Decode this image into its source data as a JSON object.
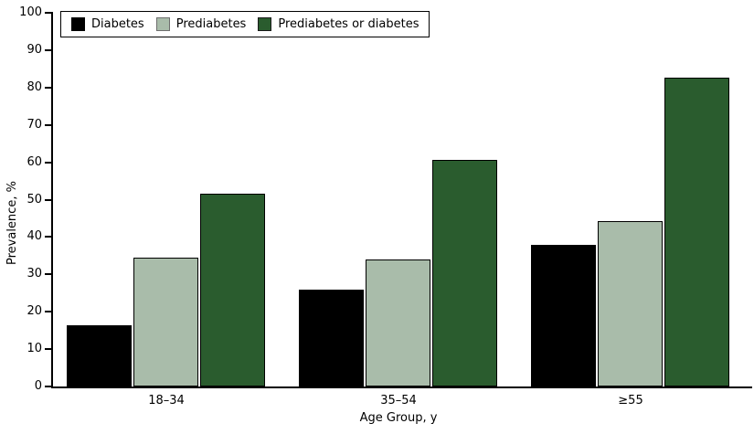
{
  "figure": {
    "background": "#ffffff",
    "axis_color": "#000000"
  },
  "chart_data": {
    "type": "bar",
    "title": "",
    "xlabel": "Age Group, y",
    "ylabel": "Prevalence, %",
    "categories": [
      "18–34",
      "35–54",
      "≥55"
    ],
    "series": [
      {
        "name": "Diabetes",
        "color": "#000000",
        "swatch_border": "#000000",
        "values": [
          16.5,
          26.0,
          38.0
        ]
      },
      {
        "name": "Prediabetes",
        "color": "#a9bcaa",
        "swatch_border": "#6e6e6e",
        "values": [
          34.4,
          34.1,
          44.2
        ]
      },
      {
        "name": "Prediabetes or diabetes",
        "color": "#2a5c2e",
        "swatch_border": "#1a1a1a",
        "values": [
          51.5,
          60.7,
          82.7
        ]
      }
    ],
    "ylim": [
      0,
      100
    ],
    "yticks": [
      0,
      10,
      20,
      30,
      40,
      50,
      60,
      70,
      80,
      90,
      100
    ],
    "grid": false,
    "legend_position": "top-left",
    "bar_outline_color": "#000000"
  }
}
